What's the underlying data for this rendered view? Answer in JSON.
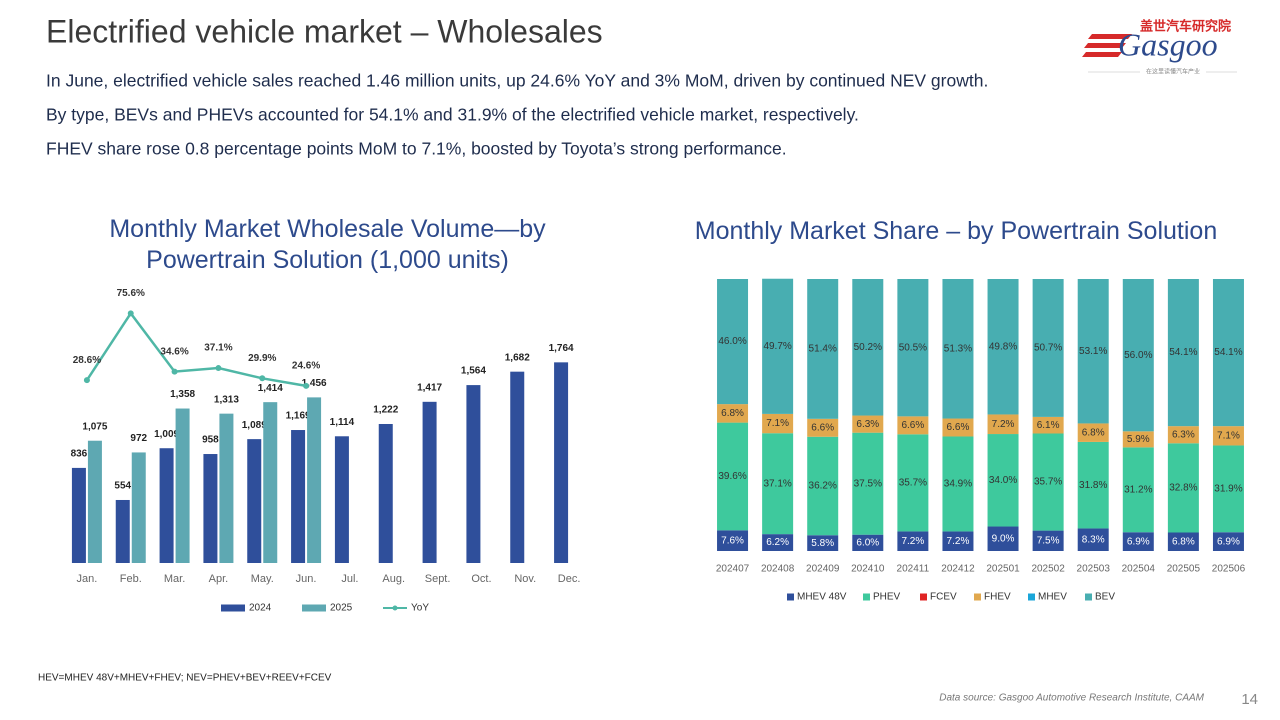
{
  "header": {
    "title": "Electrified vehicle market – Wholesales",
    "bullets": [
      "In June, electrified vehicle sales reached 1.46 million units, up 24.6% YoY and 3% MoM, driven by continued NEV growth.",
      "By type, BEVs and PHEVs accounted for 54.1% and 31.9% of the electrified vehicle market, respectively.",
      "FHEV share rose 0.8 percentage points MoM to 7.1%, boosted by Toyota’s strong performance."
    ]
  },
  "logo": {
    "name_cn": "盖世汽车研究院",
    "name": "Gasgoo",
    "tagline": "在这里读懂汽车产业"
  },
  "chart_data": [
    {
      "type": "bar",
      "title": "Monthly Market Wholesale Volume—by Powertrain Solution (1,000 units)",
      "categories": [
        "Jan.",
        "Feb.",
        "Mar.",
        "Apr.",
        "May.",
        "Jun.",
        "Jul.",
        "Aug.",
        "Sept.",
        "Oct.",
        "Nov.",
        "Dec."
      ],
      "ylim": [
        0,
        2400
      ],
      "y2lim": [
        -100,
        92
      ],
      "series": [
        {
          "name": "2024",
          "color": "#2f4f9b",
          "values": [
            836,
            554,
            1009,
            958,
            1089,
            1169,
            1114,
            1222,
            1417,
            1564,
            1682,
            1764
          ],
          "value_labels": [
            "836",
            "554",
            "1,009",
            "958",
            "1,089",
            "1,169",
            "1,114",
            "1,222",
            "1,417",
            "1,564",
            "1,682",
            "1,764"
          ]
        },
        {
          "name": "2025",
          "color": "#5ea8b2",
          "values": [
            1075,
            972,
            1358,
            1313,
            1414,
            1456,
            null,
            null,
            null,
            null,
            null,
            null
          ],
          "value_labels": [
            "1,075",
            "972",
            "1,358",
            "1,313",
            "1,414",
            "1,456",
            null,
            null,
            null,
            null,
            null,
            null
          ]
        },
        {
          "name": "YoY",
          "type": "line",
          "axis": "y2",
          "color": "#4fb7a6",
          "values": [
            28.6,
            75.6,
            34.6,
            37.1,
            29.9,
            24.6,
            null,
            null,
            null,
            null,
            null,
            null
          ],
          "value_labels": [
            "28.6%",
            "75.6%",
            "34.6%",
            "37.1%",
            "29.9%",
            "24.6%",
            null,
            null,
            null,
            null,
            null,
            null
          ]
        }
      ]
    },
    {
      "type": "stacked_bar",
      "title": "Monthly Market Share – by Powertrain Solution",
      "categories": [
        "202407",
        "202408",
        "202409",
        "202410",
        "202411",
        "202412",
        "202501",
        "202502",
        "202503",
        "202504",
        "202505",
        "202506"
      ],
      "ylim": [
        0,
        100
      ],
      "series": [
        {
          "name": "MHEV 48V",
          "color": "#2f4f9b",
          "label_color": "#ffffff",
          "values": [
            7.6,
            6.2,
            5.8,
            6.0,
            7.2,
            7.2,
            9.0,
            7.5,
            8.3,
            6.9,
            6.8,
            6.9
          ],
          "value_labels": [
            "7.6%",
            "6.2%",
            "5.8%",
            "6.0%",
            "7.2%",
            "7.2%",
            "9.0%",
            "7.5%",
            "8.3%",
            "6.9%",
            "6.8%",
            "6.9%"
          ]
        },
        {
          "name": "PHEV",
          "color": "#3ec99d",
          "label_color": "#333333",
          "values": [
            39.6,
            37.1,
            36.2,
            37.5,
            35.7,
            34.9,
            34.0,
            35.7,
            31.8,
            31.2,
            32.8,
            31.9
          ],
          "value_labels": [
            "39.6%",
            "37.1%",
            "36.2%",
            "37.5%",
            "35.7%",
            "34.9%",
            "34.0%",
            "35.7%",
            "31.8%",
            "31.2%",
            "32.8%",
            "31.9%"
          ]
        },
        {
          "name": "FCEV",
          "color": "#e02424",
          "values": [
            0,
            0,
            0,
            0,
            0,
            0,
            0,
            0,
            0,
            0,
            0,
            0
          ]
        },
        {
          "name": "FHEV",
          "color": "#e1a84e",
          "label_color": "#333333",
          "values": [
            6.8,
            7.1,
            6.6,
            6.3,
            6.6,
            6.6,
            7.2,
            6.1,
            6.8,
            5.9,
            6.3,
            7.1
          ],
          "value_labels": [
            "6.8%",
            "7.1%",
            "6.6%",
            "6.3%",
            "6.6%",
            "6.6%",
            "7.2%",
            "6.1%",
            "6.8%",
            "5.9%",
            "6.3%",
            "7.1%"
          ]
        },
        {
          "name": "MHEV",
          "color": "#1ba6d9",
          "values": [
            0,
            0,
            0,
            0,
            0,
            0,
            0,
            0,
            0,
            0,
            0,
            0
          ]
        },
        {
          "name": "BEV",
          "color": "#48aeb1",
          "label_color": "#333333",
          "values": [
            46.0,
            49.7,
            51.4,
            50.2,
            50.5,
            51.3,
            49.8,
            50.7,
            53.1,
            56.0,
            54.1,
            54.1
          ],
          "value_labels": [
            "46.0%",
            "49.7%",
            "51.4%",
            "50.2%",
            "50.5%",
            "51.3%",
            "49.8%",
            "50.7%",
            "53.1%",
            "56.0%",
            "54.1%",
            "54.1%"
          ]
        }
      ]
    }
  ],
  "footnote": "HEV=MHEV 48V+MHEV+FHEV; NEV=PHEV+BEV+REEV+FCEV",
  "source": "Data source: Gasgoo Automotive Research Institute, CAAM",
  "page_number": 14
}
